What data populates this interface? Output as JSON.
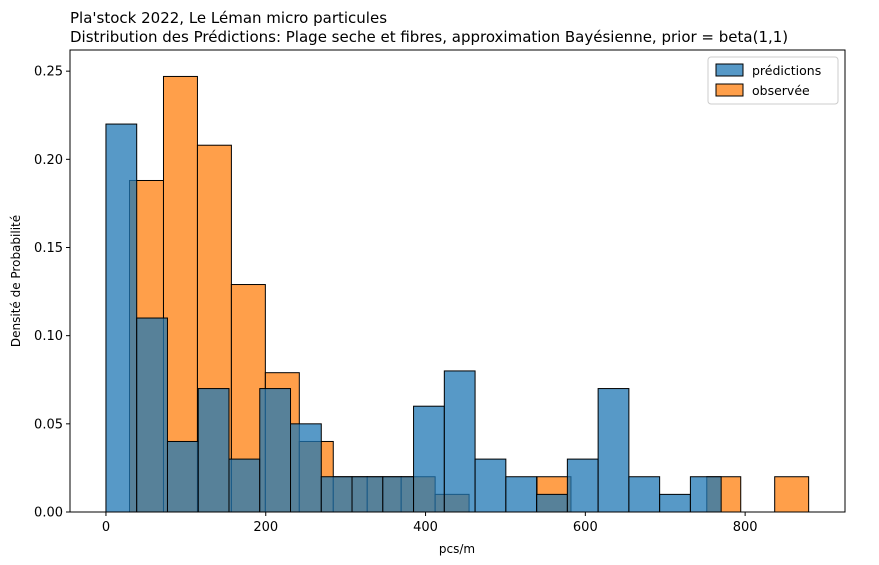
{
  "chart_data": {
    "type": "bar",
    "title": "Pla'stock 2022, Le Léman micro particules",
    "subtitle": "Distribution des Prédictions: Plage seche et fibres, approximation Bayésienne, prior = beta(1,1)",
    "xlabel": "pcs/m",
    "ylabel": "Densité de Probabilité",
    "xlim": [
      -45,
      925
    ],
    "ylim": [
      0,
      0.262
    ],
    "xticks": [
      0,
      200,
      400,
      600,
      800
    ],
    "yticks": [
      0.0,
      0.05,
      0.1,
      0.15,
      0.2,
      0.25
    ],
    "xtick_labels": [
      "0",
      "200",
      "400",
      "600",
      "800"
    ],
    "ytick_labels": [
      "0.00",
      "0.05",
      "0.10",
      "0.15",
      "0.20",
      "0.25"
    ],
    "legend_position": "top-right",
    "series": [
      {
        "name": "observée",
        "color": "#ff7f0e",
        "bins": [
          {
            "x0": 29.5,
            "x1": 72.0,
            "value": 0.188
          },
          {
            "x0": 72.0,
            "x1": 114.5,
            "value": 0.247
          },
          {
            "x0": 114.5,
            "x1": 157.0,
            "value": 0.208
          },
          {
            "x0": 157.0,
            "x1": 199.5,
            "value": 0.129
          },
          {
            "x0": 199.5,
            "x1": 242.0,
            "value": 0.079
          },
          {
            "x0": 242.0,
            "x1": 284.5,
            "value": 0.04
          },
          {
            "x0": 284.5,
            "x1": 327.0,
            "value": 0.02
          },
          {
            "x0": 327.0,
            "x1": 369.5,
            "value": 0.02
          },
          {
            "x0": 369.5,
            "x1": 412.0,
            "value": 0.02
          },
          {
            "x0": 412.0,
            "x1": 454.5,
            "value": 0.01
          },
          {
            "x0": 454.5,
            "x1": 497.0,
            "value": 0.0
          },
          {
            "x0": 497.0,
            "x1": 539.5,
            "value": 0.0
          },
          {
            "x0": 539.5,
            "x1": 582.0,
            "value": 0.02
          },
          {
            "x0": 582.0,
            "x1": 624.5,
            "value": 0.0
          },
          {
            "x0": 624.5,
            "x1": 667.0,
            "value": 0.0
          },
          {
            "x0": 667.0,
            "x1": 709.5,
            "value": 0.0
          },
          {
            "x0": 709.5,
            "x1": 752.0,
            "value": 0.0
          },
          {
            "x0": 752.0,
            "x1": 794.5,
            "value": 0.02
          },
          {
            "x0": 794.5,
            "x1": 837.0,
            "value": 0.0
          },
          {
            "x0": 837.0,
            "x1": 879.5,
            "value": 0.02
          }
        ]
      },
      {
        "name": "prédictions",
        "color": "#1f77b4",
        "bins": [
          {
            "x0": 0.0,
            "x1": 38.5,
            "value": 0.22
          },
          {
            "x0": 38.5,
            "x1": 77.0,
            "value": 0.11
          },
          {
            "x0": 77.0,
            "x1": 115.5,
            "value": 0.04
          },
          {
            "x0": 115.5,
            "x1": 154.0,
            "value": 0.07
          },
          {
            "x0": 154.0,
            "x1": 192.5,
            "value": 0.03
          },
          {
            "x0": 192.5,
            "x1": 231.0,
            "value": 0.07
          },
          {
            "x0": 231.0,
            "x1": 269.5,
            "value": 0.05
          },
          {
            "x0": 269.5,
            "x1": 308.0,
            "value": 0.02
          },
          {
            "x0": 308.0,
            "x1": 346.5,
            "value": 0.02
          },
          {
            "x0": 346.5,
            "x1": 385.0,
            "value": 0.02
          },
          {
            "x0": 385.0,
            "x1": 423.5,
            "value": 0.06
          },
          {
            "x0": 423.5,
            "x1": 462.0,
            "value": 0.08
          },
          {
            "x0": 462.0,
            "x1": 500.5,
            "value": 0.03
          },
          {
            "x0": 500.5,
            "x1": 539.0,
            "value": 0.02
          },
          {
            "x0": 539.0,
            "x1": 577.5,
            "value": 0.01
          },
          {
            "x0": 577.5,
            "x1": 616.0,
            "value": 0.03
          },
          {
            "x0": 616.0,
            "x1": 654.5,
            "value": 0.07
          },
          {
            "x0": 654.5,
            "x1": 693.0,
            "value": 0.02
          },
          {
            "x0": 693.0,
            "x1": 731.5,
            "value": 0.01
          },
          {
            "x0": 731.5,
            "x1": 770.0,
            "value": 0.02
          }
        ]
      }
    ]
  }
}
